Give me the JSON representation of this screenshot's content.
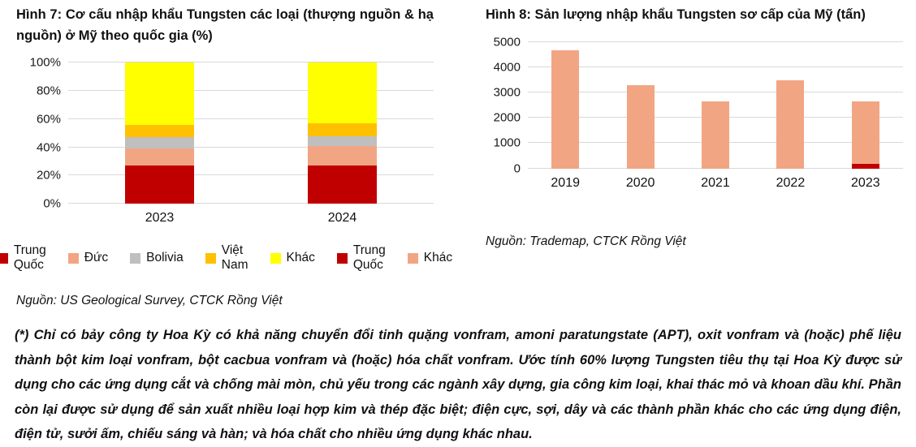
{
  "chart_data": [
    {
      "type": "bar",
      "variant": "stacked-percent",
      "title": "Hình 7: Cơ cấu nhập khẩu Tungsten các loại (thượng nguồn & hạ nguồn) ở Mỹ theo quốc gia (%)",
      "categories": [
        "2023",
        "2024"
      ],
      "series": [
        {
          "name": "Trung Quốc",
          "color": "#C00000",
          "values": [
            27,
            27
          ]
        },
        {
          "name": "Đức",
          "color": "#F2A583",
          "values": [
            12,
            14
          ]
        },
        {
          "name": "Bolivia",
          "color": "#BFBFBF",
          "values": [
            8,
            7
          ]
        },
        {
          "name": "Việt Nam",
          "color": "#FFC000",
          "values": [
            9,
            9
          ]
        },
        {
          "name": "Khác",
          "color": "#FFFF00",
          "values": [
            44,
            43
          ]
        }
      ],
      "ylim": [
        0,
        100
      ],
      "yticks": [
        "0%",
        "20%",
        "40%",
        "60%",
        "80%",
        "100%"
      ],
      "xlabel": "",
      "ylabel": "",
      "grid": true,
      "legend_position": "bottom",
      "source": "Nguồn: US Geological Survey, CTCK Rồng Việt"
    },
    {
      "type": "bar",
      "variant": "stacked",
      "title": "Hình 8: Sản lượng nhập khẩu Tungsten sơ cấp của Mỹ (tấn)",
      "categories": [
        "2019",
        "2020",
        "2021",
        "2022",
        "2023"
      ],
      "series": [
        {
          "name": "Trung Quốc",
          "color": "#C00000",
          "values": [
            0,
            0,
            0,
            0,
            170
          ]
        },
        {
          "name": "Khác",
          "color": "#F2A583",
          "values": [
            4650,
            3280,
            2650,
            3470,
            2480
          ]
        }
      ],
      "ylim": [
        0,
        5000
      ],
      "yticks": [
        "0",
        "1000",
        "2000",
        "3000",
        "4000",
        "5000"
      ],
      "xlabel": "",
      "ylabel": "",
      "grid": true,
      "legend_position": "bottom",
      "source": "Nguồn: Trademap, CTCK Rồng Việt"
    }
  ],
  "colors": {
    "gridline": "#D9D9D9",
    "trung_quoc": "#C00000",
    "duc": "#F2A583",
    "bolivia": "#BFBFBF",
    "viet_nam": "#FFC000",
    "khac_chart7": "#FFFF00",
    "khac_chart8": "#F2A583"
  },
  "footnote": "(*) Chỉ có bảy công ty Hoa Kỳ có khả năng chuyển đổi tinh quặng vonfram, amoni paratungstate (APT), oxit vonfram và (hoặc) phế liệu thành bột kim loại vonfram, bột cacbua vonfram và (hoặc) hóa chất vonfram. Ước tính 60% lượng Tungsten tiêu thụ tại Hoa Kỳ được sử dụng cho các ứng dụng cắt và chống mài mòn, chủ yếu trong các ngành xây dựng, gia công kim loại, khai thác mỏ và khoan dầu khí. Phần còn lại được sử dụng để sản xuất nhiều loại hợp kim và thép đặc biệt; điện cực, sợi, dây và các thành phần khác cho các ứng dụng điện, điện tử, sưởi ấm, chiếu sáng và hàn; và hóa chất cho nhiều ứng dụng khác nhau."
}
